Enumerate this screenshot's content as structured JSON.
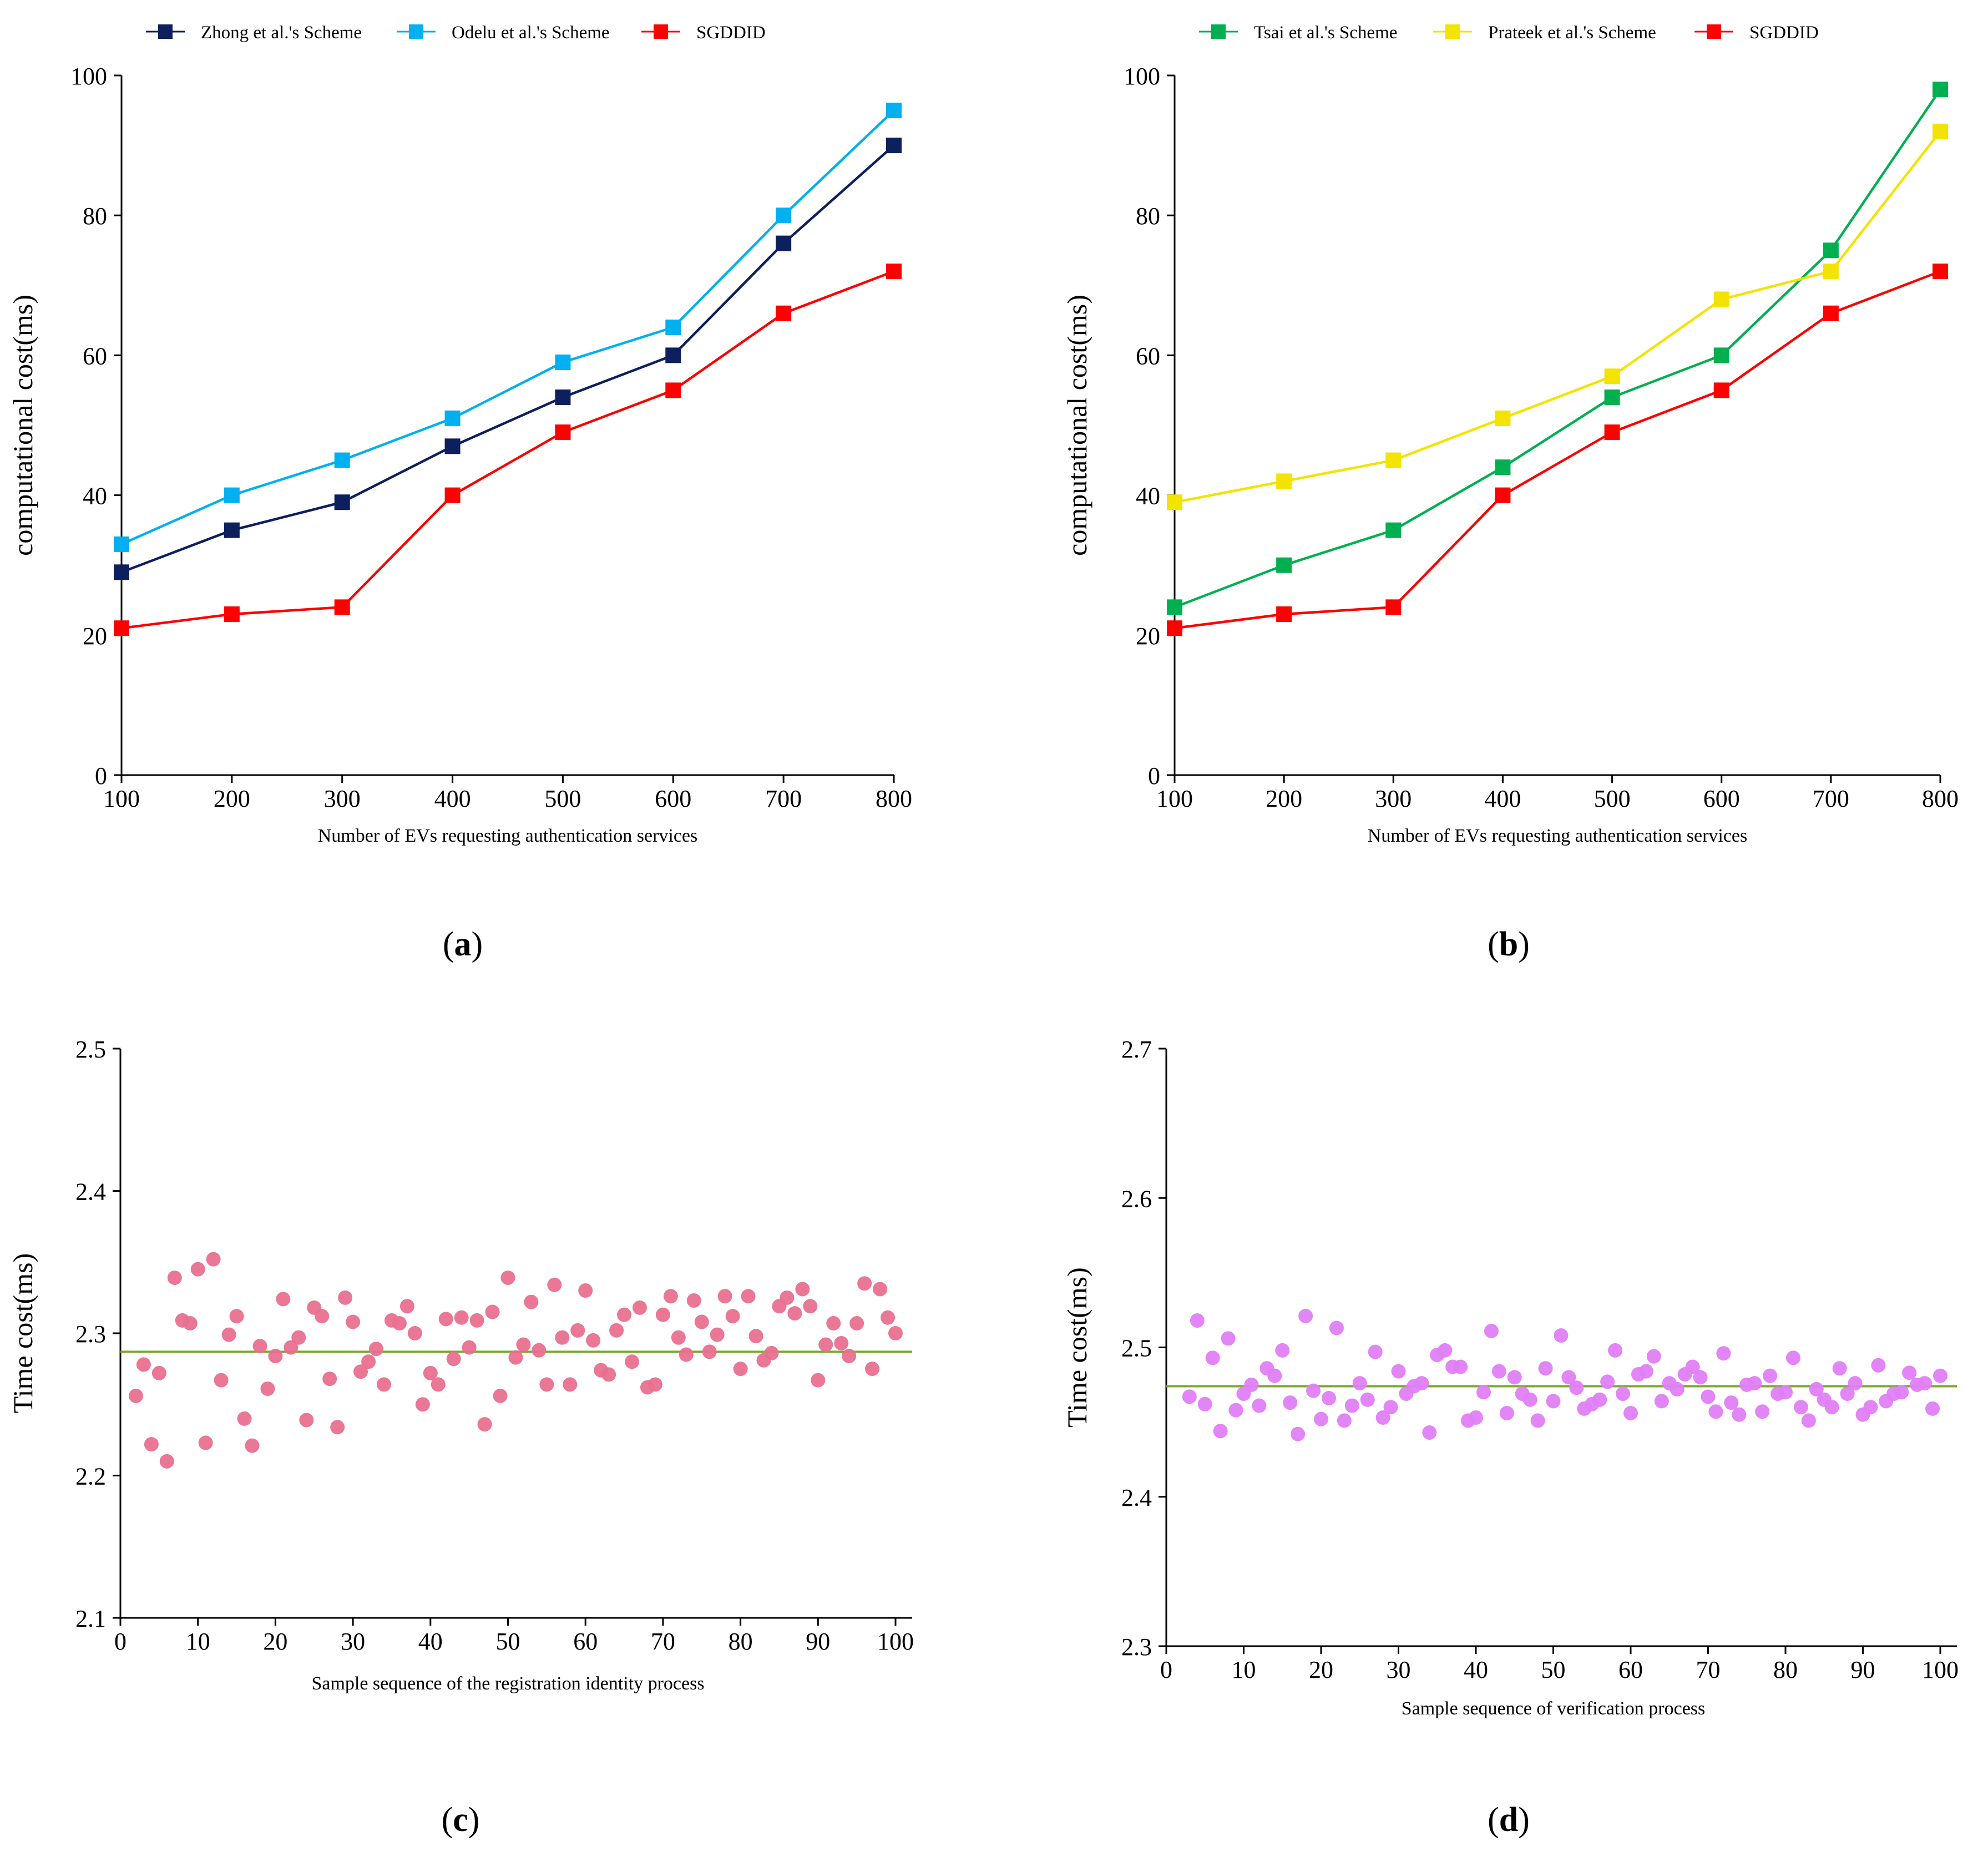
{
  "chart_data": [
    {
      "id": "a",
      "type": "line",
      "caption": {
        "open": "(",
        "letter": "a",
        "close": ")"
      },
      "xlabel": "Number of EVs requesting authentication services",
      "ylabel": "computational cost(ms)",
      "x": [
        100,
        200,
        300,
        400,
        500,
        600,
        700,
        800
      ],
      "x_ticks": [
        "100",
        "200",
        "300",
        "400",
        "500",
        "600",
        "700",
        "800"
      ],
      "y_ticks": [
        "0",
        "20",
        "40",
        "60",
        "80",
        "100"
      ],
      "xlim": [
        100,
        800
      ],
      "ylim": [
        0,
        100
      ],
      "grid": false,
      "legend_position": "top",
      "series": [
        {
          "name": "Zhong et al.'s Scheme",
          "color": "#0d1f5c",
          "marker": "square",
          "values": [
            29,
            35,
            39,
            47,
            54,
            60,
            76,
            90
          ]
        },
        {
          "name": "Odelu et al.'s Scheme",
          "color": "#00b0f0",
          "marker": "square",
          "values": [
            33,
            40,
            45,
            51,
            59,
            64,
            80,
            95
          ]
        },
        {
          "name": "SGDDID",
          "color": "#ff0000",
          "marker": "square",
          "values": [
            21,
            23,
            24,
            40,
            49,
            55,
            66,
            72
          ]
        }
      ]
    },
    {
      "id": "b",
      "type": "line",
      "caption": {
        "open": "(",
        "letter": "b",
        "close": ")"
      },
      "xlabel": "Number of EVs requesting authentication services",
      "ylabel": "computational cost(ms)",
      "x": [
        100,
        200,
        300,
        400,
        500,
        600,
        700,
        800
      ],
      "x_ticks": [
        "100",
        "200",
        "300",
        "400",
        "500",
        "600",
        "700",
        "800"
      ],
      "y_ticks": [
        "0",
        "20",
        "40",
        "60",
        "80",
        "100"
      ],
      "xlim": [
        100,
        800
      ],
      "ylim": [
        0,
        100
      ],
      "grid": false,
      "legend_position": "top",
      "series": [
        {
          "name": "Tsai et al.'s Scheme",
          "color": "#00b050",
          "marker": "square",
          "values": [
            24,
            30,
            35,
            44,
            54,
            60,
            75,
            98
          ]
        },
        {
          "name": "Prateek et al.'s Scheme",
          "color": "#f2e300",
          "marker": "square",
          "values": [
            39,
            42,
            45,
            51,
            57,
            68,
            72,
            92
          ]
        },
        {
          "name": "SGDDID",
          "color": "#ff0000",
          "marker": "square",
          "values": [
            21,
            23,
            24,
            40,
            49,
            55,
            66,
            72
          ]
        }
      ]
    },
    {
      "id": "c",
      "type": "scatter",
      "caption": {
        "open": "(",
        "letter": "c",
        "close": ")"
      },
      "xlabel": "Sample sequence of the registration identity process",
      "ylabel": "Time cost(ms)",
      "x_ticks": [
        "0",
        "10",
        "20",
        "30",
        "40",
        "50",
        "60",
        "70",
        "80",
        "90",
        "100"
      ],
      "y_ticks": [
        "2.1",
        "2.2",
        "2.3",
        "2.4",
        "2.5"
      ],
      "xlim": [
        0,
        100
      ],
      "ylim": [
        2.1,
        2.5
      ],
      "grid": false,
      "point_color": "#e8708f",
      "mean_line": {
        "value": 2.287,
        "color": "#7aaa32"
      },
      "x": [
        2,
        3,
        4,
        5,
        6,
        7,
        8,
        9,
        10,
        11,
        12,
        13,
        14,
        15,
        16,
        17,
        18,
        19,
        20,
        21,
        22,
        23,
        24,
        25,
        26,
        27,
        28,
        29,
        30,
        31,
        32,
        33,
        34,
        35,
        36,
        37,
        38,
        39,
        40,
        41,
        42,
        43,
        44,
        45,
        46,
        47,
        48,
        49,
        50,
        51,
        52,
        53,
        54,
        55,
        56,
        57,
        58,
        59,
        60,
        61,
        62,
        63,
        64,
        65,
        66,
        67,
        68,
        69,
        70,
        71,
        72,
        73,
        74,
        75,
        76,
        77,
        78,
        79,
        80,
        81,
        82,
        83,
        84,
        85,
        86,
        87,
        88,
        89,
        90,
        91,
        92,
        93,
        94,
        95,
        96,
        97,
        98,
        99,
        100
      ],
      "values": [
        2.256,
        2.278,
        2.222,
        2.272,
        2.21,
        2.339,
        2.309,
        2.307,
        2.345,
        2.223,
        2.352,
        2.267,
        2.299,
        2.312,
        2.24,
        2.221,
        2.291,
        2.261,
        2.284,
        2.324,
        2.29,
        2.297,
        2.239,
        2.318,
        2.312,
        2.268,
        2.234,
        2.325,
        2.308,
        2.273,
        2.28,
        2.289,
        2.264,
        2.309,
        2.307,
        2.319,
        2.3,
        2.25,
        2.272,
        2.264,
        2.31,
        2.282,
        2.311,
        2.29,
        2.309,
        2.236,
        2.315,
        2.256,
        2.339,
        2.283,
        2.292,
        2.322,
        2.288,
        2.264,
        2.334,
        2.297,
        2.264,
        2.302,
        2.33,
        2.295,
        2.274,
        2.271,
        2.302,
        2.313,
        2.28,
        2.318,
        2.262,
        2.264,
        2.313,
        2.326,
        2.297,
        2.285,
        2.323,
        2.308,
        2.287,
        2.299,
        2.326,
        2.312,
        2.275,
        2.326,
        2.298,
        2.281,
        2.286,
        2.319,
        2.325,
        2.314,
        2.331,
        2.319,
        2.267,
        2.292,
        2.307,
        2.293,
        2.284,
        2.307,
        2.335,
        2.275,
        2.331,
        2.311,
        2.3
      ]
    },
    {
      "id": "d",
      "type": "scatter",
      "caption": {
        "open": "(",
        "letter": "d",
        "close": ")"
      },
      "xlabel": "Sample sequence of verification process",
      "ylabel": "Time cost(ms)",
      "x_ticks": [
        "0",
        "10",
        "20",
        "30",
        "40",
        "50",
        "60",
        "70",
        "80",
        "90",
        "100"
      ],
      "y_ticks": [
        "2.3",
        "2.4",
        "2.5",
        "2.6",
        "2.7"
      ],
      "xlim": [
        0,
        100
      ],
      "ylim": [
        2.3,
        2.7
      ],
      "grid": false,
      "point_color": "#e07ef7",
      "mean_line": {
        "value": 2.474,
        "color": "#7aaa32"
      },
      "x": [
        3,
        4,
        5,
        6,
        7,
        8,
        9,
        10,
        11,
        12,
        13,
        14,
        15,
        16,
        17,
        18,
        19,
        20,
        21,
        22,
        23,
        24,
        25,
        26,
        27,
        28,
        29,
        30,
        31,
        32,
        33,
        34,
        35,
        36,
        37,
        38,
        39,
        40,
        41,
        42,
        43,
        44,
        45,
        46,
        47,
        48,
        49,
        50,
        51,
        52,
        53,
        54,
        55,
        56,
        57,
        58,
        59,
        60,
        61,
        62,
        63,
        64,
        65,
        66,
        67,
        68,
        69,
        70,
        71,
        72,
        73,
        74,
        75,
        76,
        77,
        78,
        79,
        80,
        81,
        82,
        83,
        84,
        85,
        86,
        87,
        88,
        89,
        90,
        91,
        92,
        93,
        94,
        95,
        96,
        97,
        98,
        99,
        100
      ],
      "values": [
        2.467,
        2.518,
        2.462,
        2.493,
        2.444,
        2.506,
        2.458,
        2.469,
        2.475,
        2.461,
        2.486,
        2.481,
        2.498,
        2.463,
        2.442,
        2.521,
        2.471,
        2.452,
        2.466,
        2.513,
        2.451,
        2.461,
        2.476,
        2.465,
        2.497,
        2.453,
        2.46,
        2.484,
        2.469,
        2.474,
        2.476,
        2.443,
        2.495,
        2.498,
        2.487,
        2.487,
        2.451,
        2.453,
        2.47,
        2.511,
        2.484,
        2.456,
        2.48,
        2.469,
        2.465,
        2.451,
        2.486,
        2.464,
        2.508,
        2.48,
        2.473,
        2.459,
        2.462,
        2.465,
        2.477,
        2.498,
        2.469,
        2.456,
        2.482,
        2.484,
        2.494,
        2.464,
        2.476,
        2.472,
        2.482,
        2.487,
        2.48,
        2.467,
        2.457,
        2.496,
        2.463,
        2.455,
        2.475,
        2.476,
        2.457,
        2.481,
        2.469,
        2.47,
        2.493,
        2.46,
        2.451,
        2.472,
        2.465,
        2.46,
        2.486,
        2.469,
        2.476,
        2.455,
        2.46,
        2.488,
        2.464,
        2.469,
        2.47,
        2.483,
        2.475,
        2.476,
        2.459,
        2.481
      ]
    }
  ]
}
